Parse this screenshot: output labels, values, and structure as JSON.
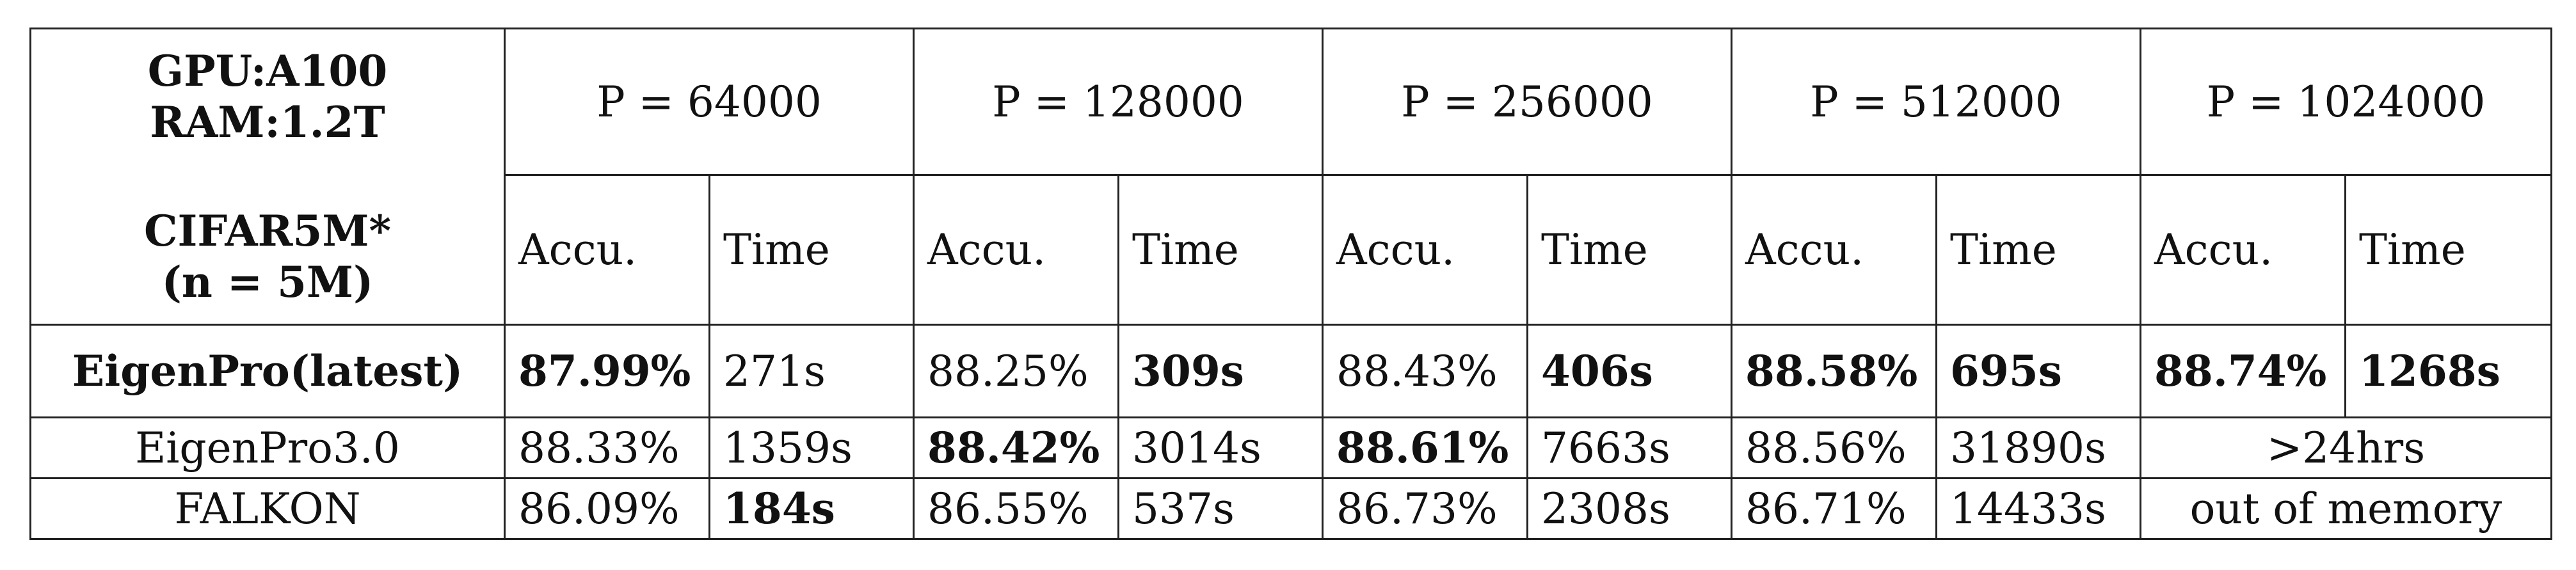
{
  "corner": {
    "gpu": "GPU:A100",
    "ram": "RAM:1.2T",
    "dataset": "CIFAR5M*",
    "n": "(n = 5M)"
  },
  "columns": [
    {
      "p": "P = 64000",
      "acc": "Accu.",
      "time": "Time"
    },
    {
      "p": "P = 128000",
      "acc": "Accu.",
      "time": "Time"
    },
    {
      "p": "P = 256000",
      "acc": "Accu.",
      "time": "Time"
    },
    {
      "p": "P = 512000",
      "acc": "Accu.",
      "time": "Time"
    },
    {
      "p": "P = 1024000",
      "acc": "Accu.",
      "time": "Time"
    }
  ],
  "rows": [
    {
      "method": "EigenPro(latest)",
      "cells": [
        "87.99%",
        "271s",
        "88.25%",
        "309s",
        "88.43%",
        "406s",
        "88.58%",
        "695s",
        "88.74%",
        "1268s"
      ]
    },
    {
      "method": "EigenPro3.0",
      "cells": [
        "88.33%",
        "1359s",
        "88.42%",
        "3014s",
        "88.61%",
        "7663s",
        "88.56%",
        "31890s"
      ],
      "span_last": ">24hrs"
    },
    {
      "method": "FALKON",
      "cells": [
        "86.09%",
        "184s",
        "86.55%",
        "537s",
        "86.73%",
        "2308s",
        "86.71%",
        "14433s"
      ],
      "span_last": "out of memory"
    }
  ]
}
